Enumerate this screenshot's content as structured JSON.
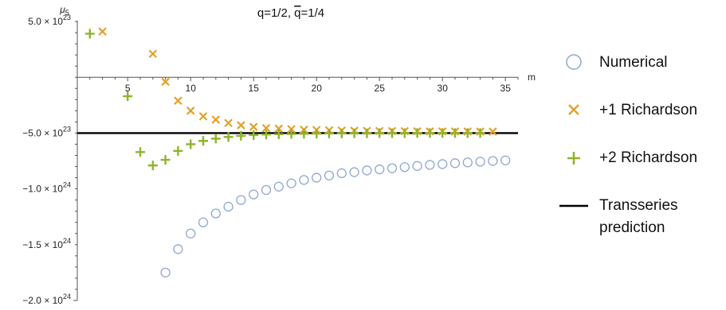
{
  "chart_data": {
    "type": "scatter",
    "title": "q=1/2, q̄=1/4",
    "xlabel": "m",
    "ylabel": "μ5",
    "xlim": [
      1,
      36
    ],
    "ylim": [
      -2e+24,
      5.5e+23
    ],
    "x_ticks": [
      5,
      10,
      15,
      20,
      25,
      30,
      35
    ],
    "y_ticks": [
      {
        "value": 5e+23,
        "mant": "5.0",
        "exp": "23"
      },
      {
        "value": -5e+23,
        "mant": "−5.0",
        "exp": "23"
      },
      {
        "value": -1e+24,
        "mant": "−1.0",
        "exp": "24"
      },
      {
        "value": -1.5e+24,
        "mant": "−1.5",
        "exp": "24"
      },
      {
        "value": -2e+24,
        "mant": "−2.0",
        "exp": "24"
      }
    ],
    "series": [
      {
        "name": "Numerical",
        "marker": "circle",
        "color": "#8fa8cf",
        "x": [
          8,
          9,
          10,
          11,
          12,
          13,
          14,
          15,
          16,
          17,
          18,
          19,
          20,
          21,
          22,
          23,
          24,
          25,
          26,
          27,
          28,
          29,
          30,
          31,
          32,
          33,
          34,
          35
        ],
        "y": [
          -1.75e+24,
          -1.54e+24,
          -1.4e+24,
          -1.3e+24,
          -1.22e+24,
          -1.16e+24,
          -1.1e+24,
          -1.05e+24,
          -1.01e+24,
          -9.8e+23,
          -9.5e+23,
          -9.2e+23,
          -9e+23,
          -8.8e+23,
          -8.6e+23,
          -8.5e+23,
          -8.35e+23,
          -8.25e+23,
          -8.15e+23,
          -8.05e+23,
          -7.95e+23,
          -7.85e+23,
          -7.78e+23,
          -7.7e+23,
          -7.63e+23,
          -7.56e+23,
          -7.5e+23,
          -7.45e+23
        ]
      },
      {
        "name": "+1 Richardson",
        "marker": "cross",
        "color": "#e3a12a",
        "x": [
          3,
          7,
          8,
          9,
          10,
          11,
          12,
          13,
          14,
          15,
          16,
          17,
          18,
          19,
          20,
          21,
          22,
          23,
          24,
          25,
          26,
          27,
          28,
          29,
          30,
          31,
          32,
          33,
          34
        ],
        "y": [
          4.1e+23,
          2.1e+23,
          -4e+22,
          -2.1e+23,
          -3e+23,
          -3.5e+23,
          -3.8e+23,
          -4.1e+23,
          -4.3e+23,
          -4.45e+23,
          -4.55e+23,
          -4.6e+23,
          -4.65e+23,
          -4.7e+23,
          -4.72e+23,
          -4.75e+23,
          -4.77e+23,
          -4.79e+23,
          -4.8e+23,
          -4.81e+23,
          -4.82e+23,
          -4.83e+23,
          -4.84e+23,
          -4.85e+23,
          -4.85e+23,
          -4.86e+23,
          -4.86e+23,
          -4.87e+23,
          -4.87e+23
        ]
      },
      {
        "name": "+2 Richardson",
        "marker": "plus",
        "color": "#8fb52b",
        "x": [
          2,
          5,
          6,
          7,
          8,
          9,
          10,
          11,
          12,
          13,
          14,
          15,
          16,
          17,
          18,
          19,
          20,
          21,
          22,
          23,
          24,
          25,
          26,
          27,
          28,
          29,
          30,
          31,
          32,
          33
        ],
        "y": [
          3.9e+23,
          -1.7e+23,
          -6.7e+23,
          -7.9e+23,
          -7.4e+23,
          -6.6e+23,
          -6e+23,
          -5.7e+23,
          -5.5e+23,
          -5.35e+23,
          -5.25e+23,
          -5.18e+23,
          -5.13e+23,
          -5.1e+23,
          -5.08e+23,
          -5.06e+23,
          -5.05e+23,
          -5.04e+23,
          -5.03e+23,
          -5.02e+23,
          -5.02e+23,
          -5.01e+23,
          -5.01e+23,
          -5.01e+23,
          -5e+23,
          -5e+23,
          -5e+23,
          -5e+23,
          -5e+23,
          -5e+23
        ]
      },
      {
        "name": "Transseries prediction",
        "marker": "line",
        "color": "#000000",
        "y": -5e+23
      }
    ],
    "legend": {
      "placement": "right",
      "entries": [
        "Numerical",
        "+1 Richardson",
        "+2 Richardson",
        "Transseries",
        "prediction"
      ]
    },
    "grid": false
  }
}
